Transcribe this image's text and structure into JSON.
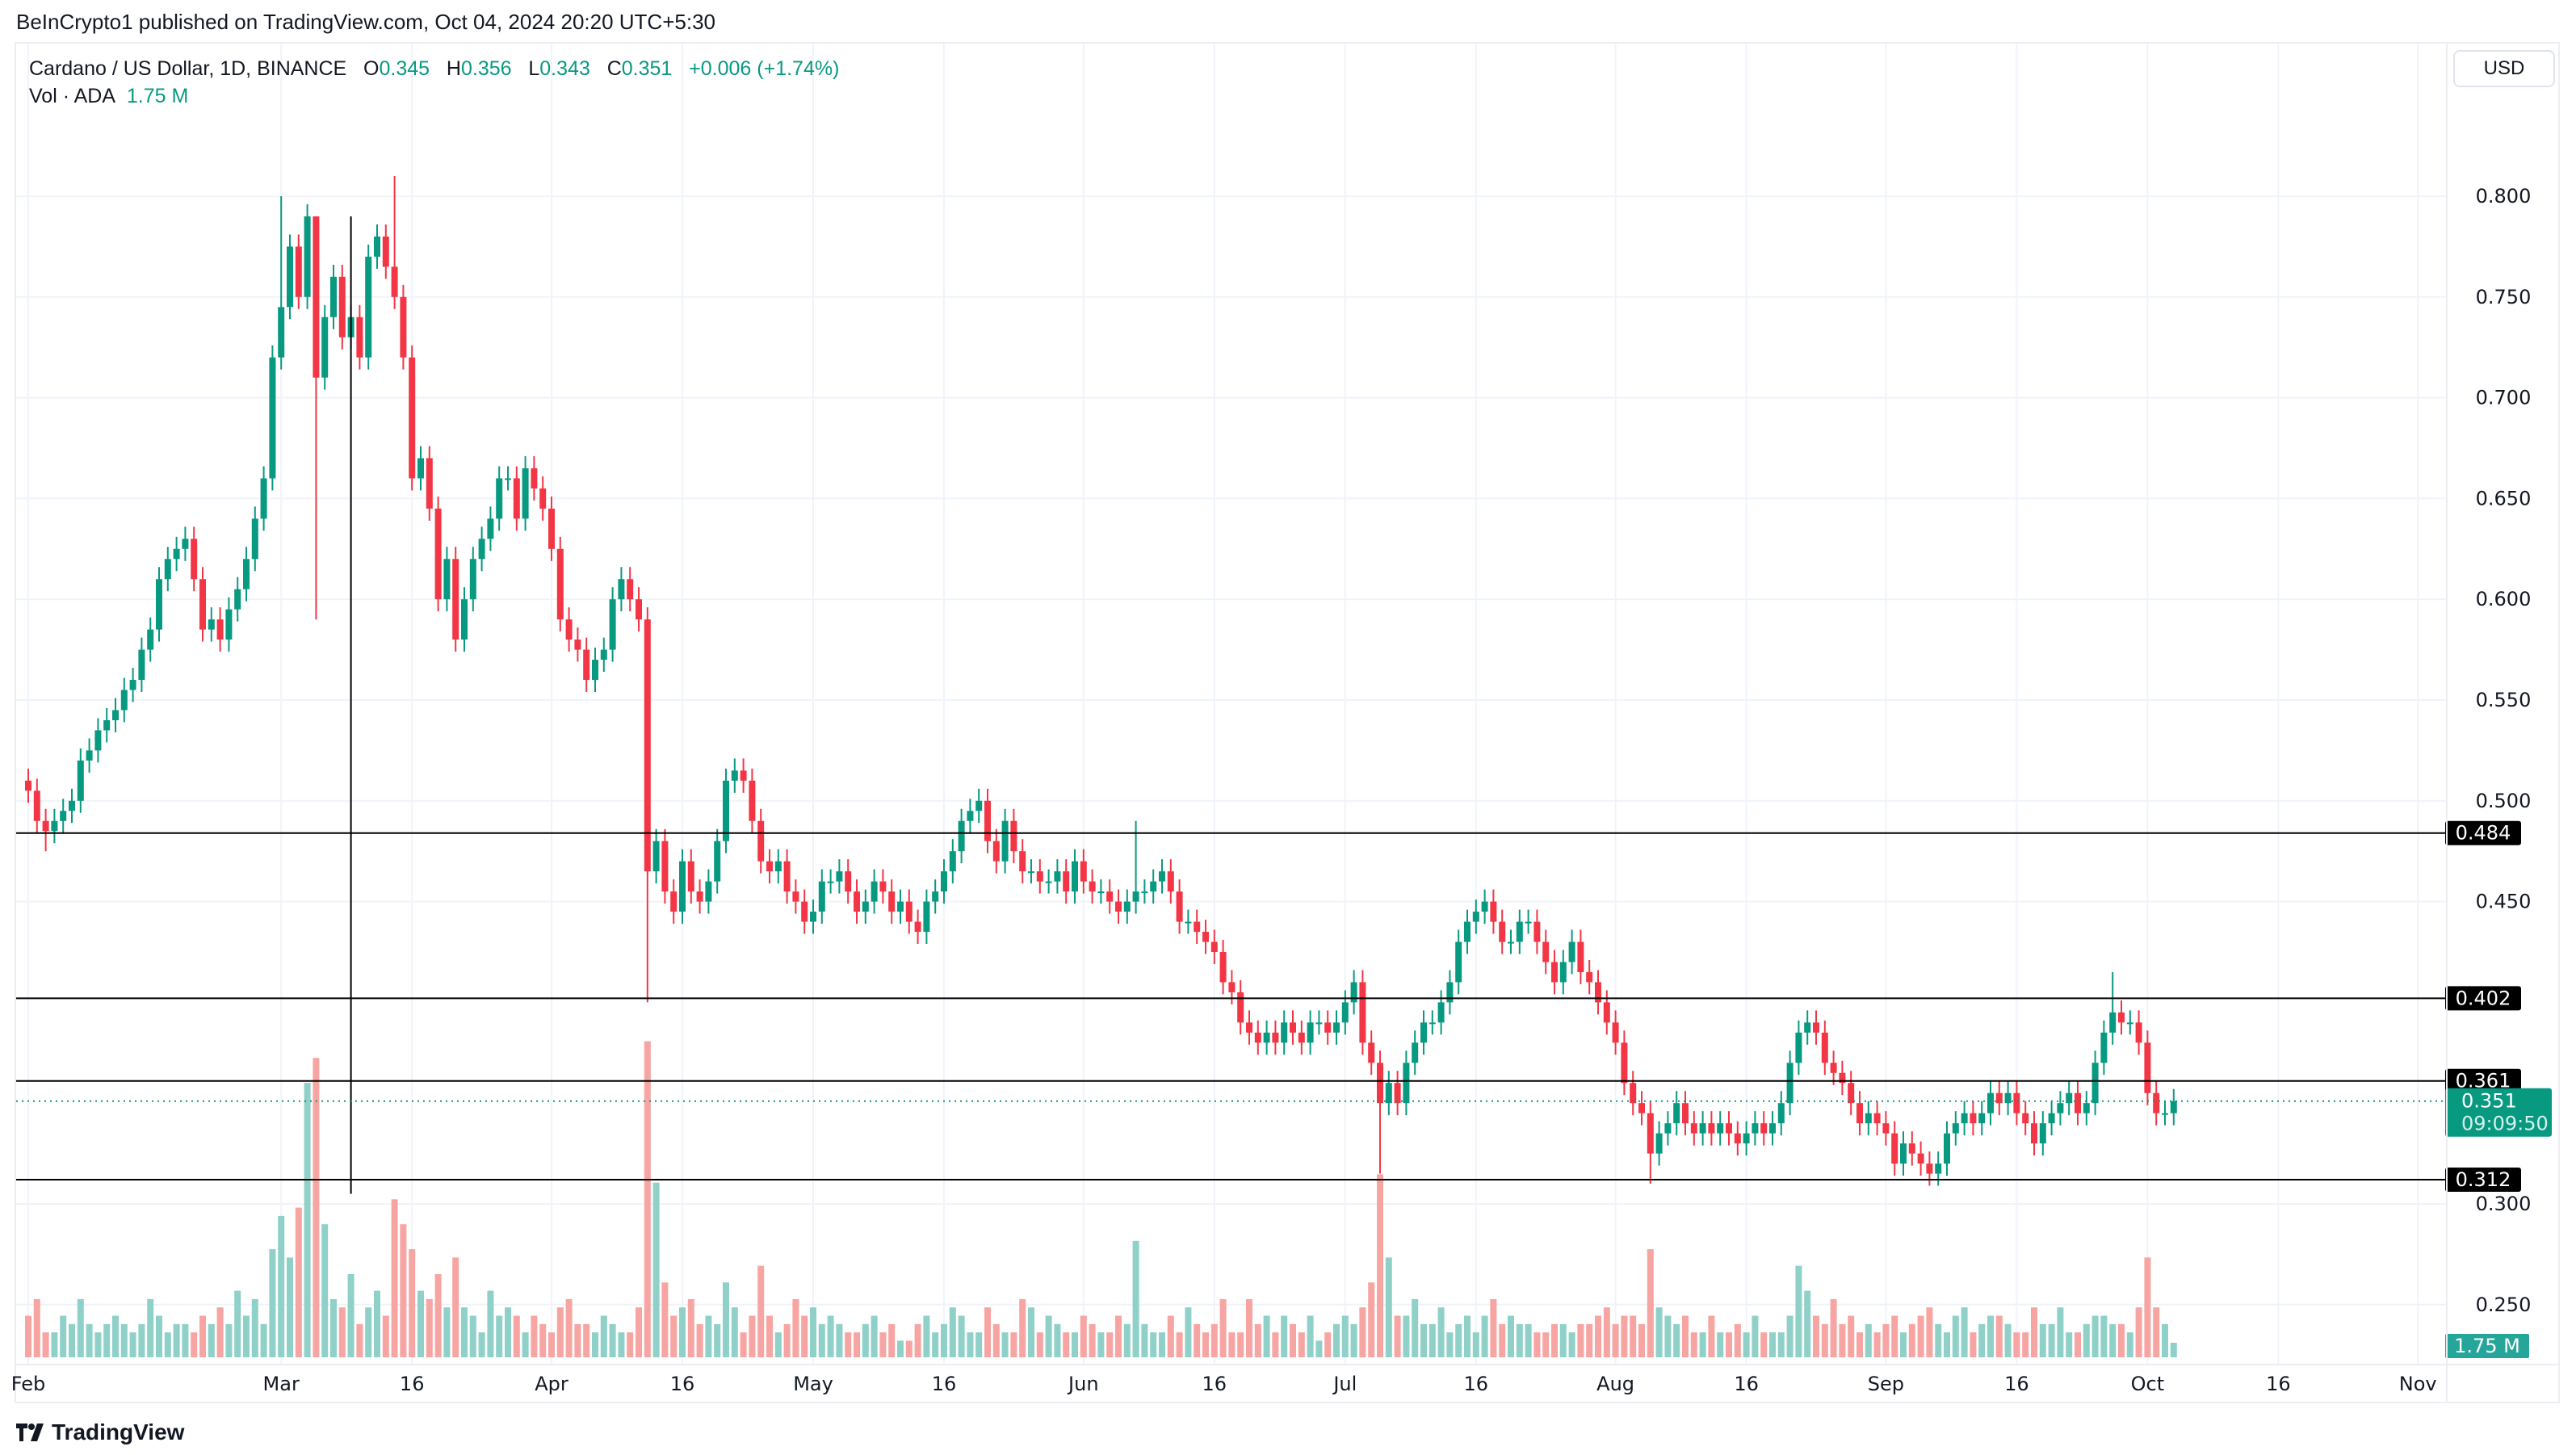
{
  "published": "BeInCrypto1 published on TradingView.com, Oct 04, 2024 20:20 UTC+5:30",
  "legend": {
    "symbol": "Cardano / US Dollar, 1D, BINANCE",
    "o_label": "O",
    "o": "0.345",
    "h_label": "H",
    "h": "0.356",
    "l_label": "L",
    "l": "0.343",
    "c_label": "C",
    "c": "0.351",
    "change": "+0.006 (+1.74%)",
    "vol_label": "Vol · ADA",
    "vol": "1.75 M"
  },
  "currency_button": "USD",
  "brand": "TradingView",
  "colors": {
    "up": "#089981",
    "down": "#F23645",
    "vol_up": "#8fd1c9",
    "vol_down": "#f7a5a3",
    "level_line": "#000000",
    "last_price": "#089981"
  },
  "chart_data": {
    "type": "candlestick",
    "title": "",
    "months": [
      "Feb",
      "Mar",
      "Apr",
      "May",
      "Jun",
      "Jul",
      "Aug",
      "Sep",
      "Oct"
    ],
    "days_per_month": [
      29,
      31,
      30,
      31,
      30,
      31,
      31,
      30,
      4
    ],
    "close": [
      0.505,
      0.49,
      0.485,
      0.49,
      0.495,
      0.5,
      0.52,
      0.525,
      0.535,
      0.54,
      0.545,
      0.555,
      0.56,
      0.575,
      0.585,
      0.61,
      0.62,
      0.625,
      0.63,
      0.61,
      0.585,
      0.59,
      0.58,
      0.595,
      0.605,
      0.62,
      0.64,
      0.66,
      0.72,
      0.745,
      0.775,
      0.75,
      0.79,
      0.71,
      0.74,
      0.76,
      0.73,
      0.74,
      0.72,
      0.77,
      0.78,
      0.765,
      0.75,
      0.72,
      0.66,
      0.67,
      0.645,
      0.6,
      0.62,
      0.58,
      0.6,
      0.62,
      0.63,
      0.64,
      0.66,
      0.66,
      0.64,
      0.665,
      0.655,
      0.645,
      0.625,
      0.59,
      0.58,
      0.575,
      0.56,
      0.57,
      0.575,
      0.6,
      0.61,
      0.6,
      0.59,
      0.465,
      0.48,
      0.455,
      0.445,
      0.47,
      0.455,
      0.45,
      0.46,
      0.48,
      0.51,
      0.515,
      0.51,
      0.49,
      0.47,
      0.465,
      0.47,
      0.455,
      0.45,
      0.44,
      0.445,
      0.46,
      0.46,
      0.465,
      0.455,
      0.445,
      0.45,
      0.46,
      0.455,
      0.445,
      0.45,
      0.44,
      0.435,
      0.45,
      0.455,
      0.465,
      0.475,
      0.49,
      0.495,
      0.5,
      0.48,
      0.47,
      0.49,
      0.475,
      0.465,
      0.465,
      0.46,
      0.46,
      0.465,
      0.455,
      0.47,
      0.46,
      0.455,
      0.455,
      0.45,
      0.445,
      0.45,
      0.455,
      0.455,
      0.46,
      0.465,
      0.455,
      0.44,
      0.44,
      0.435,
      0.43,
      0.425,
      0.41,
      0.405,
      0.39,
      0.385,
      0.38,
      0.385,
      0.38,
      0.39,
      0.385,
      0.38,
      0.39,
      0.39,
      0.385,
      0.39,
      0.4,
      0.41,
      0.38,
      0.37,
      0.35,
      0.36,
      0.35,
      0.37,
      0.38,
      0.39,
      0.39,
      0.4,
      0.41,
      0.43,
      0.44,
      0.445,
      0.45,
      0.44,
      0.43,
      0.43,
      0.44,
      0.44,
      0.43,
      0.42,
      0.41,
      0.42,
      0.43,
      0.415,
      0.41,
      0.4,
      0.39,
      0.38,
      0.36,
      0.35,
      0.345,
      0.325,
      0.335,
      0.34,
      0.35,
      0.34,
      0.335,
      0.34,
      0.335,
      0.34,
      0.335,
      0.33,
      0.335,
      0.34,
      0.335,
      0.34,
      0.35,
      0.37,
      0.385,
      0.39,
      0.385,
      0.37,
      0.365,
      0.36,
      0.35,
      0.34,
      0.345,
      0.34,
      0.335,
      0.32,
      0.33,
      0.325,
      0.32,
      0.315,
      0.32,
      0.335,
      0.34,
      0.345,
      0.34,
      0.345,
      0.355,
      0.35,
      0.355,
      0.345,
      0.34,
      0.33,
      0.34,
      0.345,
      0.35,
      0.355,
      0.345,
      0.35,
      0.37,
      0.385,
      0.395,
      0.39,
      0.39,
      0.38,
      0.355,
      0.345,
      0.345,
      0.351
    ],
    "volume_millions": [
      5,
      7,
      3,
      3,
      5,
      4,
      7,
      4,
      3,
      4,
      5,
      4,
      3,
      4,
      7,
      5,
      3,
      4,
      4,
      3,
      5,
      4,
      6,
      4,
      8,
      5,
      7,
      4,
      13,
      17,
      12,
      18,
      33,
      36,
      16,
      7,
      6,
      10,
      4,
      6,
      8,
      5,
      19,
      16,
      13,
      8,
      7,
      10,
      6,
      12,
      6,
      5,
      3,
      8,
      5,
      6,
      5,
      3,
      5,
      4,
      3,
      6,
      7,
      4,
      4,
      3,
      5,
      4,
      3,
      3,
      6,
      38,
      21,
      9,
      5,
      6,
      7,
      4,
      5,
      4,
      9,
      6,
      3,
      5,
      11,
      5,
      3,
      4,
      7,
      5,
      6,
      4,
      5,
      4,
      3,
      3,
      4,
      5,
      3,
      4,
      2,
      2,
      4,
      5,
      3,
      4,
      6,
      5,
      3,
      3,
      6,
      4,
      3,
      3,
      7,
      6,
      3,
      5,
      4,
      3,
      3,
      5,
      4,
      3,
      3,
      5,
      4,
      14,
      4,
      3,
      3,
      5,
      3,
      6,
      4,
      3,
      4,
      7,
      3,
      3,
      7,
      4,
      5,
      3,
      5,
      4,
      3,
      5,
      2,
      3,
      4,
      5,
      4,
      6,
      9,
      22,
      12,
      5,
      5,
      7,
      4,
      4,
      6,
      3,
      4,
      5,
      3,
      5,
      7,
      4,
      5,
      4,
      4,
      3,
      3,
      4,
      4,
      3,
      4,
      4,
      5,
      6,
      4,
      5,
      5,
      4,
      13,
      6,
      5,
      4,
      5,
      3,
      3,
      5,
      3,
      3,
      4,
      3,
      5,
      3,
      3,
      3,
      5,
      11,
      8,
      5,
      4,
      7,
      4,
      5,
      3,
      4,
      3,
      4,
      5,
      3,
      4,
      5,
      6,
      4,
      3,
      5,
      6,
      3,
      4,
      5,
      5,
      4,
      3,
      3,
      6,
      4,
      4,
      6,
      3,
      3,
      4,
      5,
      5,
      4,
      4,
      3,
      6,
      12,
      6,
      4,
      1.75
    ],
    "notable_wicks": [
      {
        "day": "Feb 3",
        "low": 0.475
      },
      {
        "day": "Mar 1",
        "high": 0.8
      },
      {
        "day": "Mar 5",
        "low": 0.59,
        "high": 0.79
      },
      {
        "day": "Mar 14",
        "high": 0.81
      },
      {
        "day": "Apr 12",
        "low": 0.4
      },
      {
        "day": "Jun 7",
        "high": 0.49
      },
      {
        "day": "Jul 5",
        "low": 0.315
      },
      {
        "day": "Aug 5",
        "low": 0.31
      },
      {
        "day": "Sep 27",
        "high": 0.415
      }
    ],
    "y_ticks": [
      "0.800",
      "0.750",
      "0.700",
      "0.650",
      "0.600",
      "0.550",
      "0.500",
      "0.450",
      "0.300",
      "0.250"
    ],
    "ylim": [
      0.25,
      0.85
    ],
    "x_ticks": [
      {
        "label": "Feb",
        "day": "Feb 1"
      },
      {
        "label": "Mar",
        "day": "Mar 1"
      },
      {
        "label": "16",
        "day": "Mar 16"
      },
      {
        "label": "Apr",
        "day": "Apr 1"
      },
      {
        "label": "16",
        "day": "Apr 16"
      },
      {
        "label": "May",
        "day": "May 1"
      },
      {
        "label": "16",
        "day": "May 16"
      },
      {
        "label": "Jun",
        "day": "Jun 1"
      },
      {
        "label": "16",
        "day": "Jun 16"
      },
      {
        "label": "Jul",
        "day": "Jul 1"
      },
      {
        "label": "16",
        "day": "Jul 16"
      },
      {
        "label": "Aug",
        "day": "Aug 1"
      },
      {
        "label": "16",
        "day": "Aug 16"
      },
      {
        "label": "Sep",
        "day": "Sep 1"
      },
      {
        "label": "16",
        "day": "Sep 16"
      },
      {
        "label": "Oct",
        "day": "Oct 1"
      },
      {
        "label": "16",
        "day": "Oct 16"
      },
      {
        "label": "Nov",
        "day": "Nov 1"
      }
    ],
    "levels": [
      {
        "price": 0.484,
        "label": "0.484"
      },
      {
        "price": 0.402,
        "label": "0.402"
      },
      {
        "price": 0.361,
        "label": "0.361"
      },
      {
        "price": 0.312,
        "label": "0.312"
      }
    ],
    "vertical_line": {
      "day": "Mar 9",
      "from": 0.305,
      "to": 0.79
    },
    "last_price": {
      "price": 0.351,
      "label": "0.351",
      "countdown": "09:09:50"
    },
    "last_volume_label": "1.75 M",
    "grid": true
  }
}
